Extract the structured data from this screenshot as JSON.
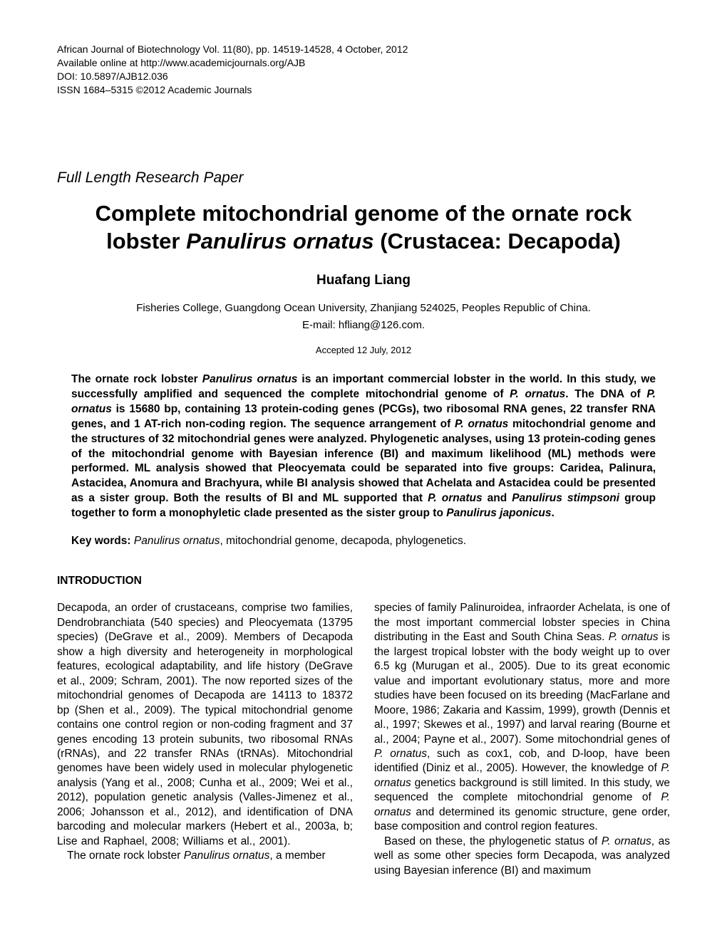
{
  "header": {
    "journal": "African Journal of Biotechnology Vol. 11(80), pp. 14519-14528, 4 October, 2012",
    "online": "Available online at http://www.academicjournals.org/AJB",
    "doi": "DOI: 10.5897/AJB12.036",
    "issn": "ISSN 1684–5315 ©2012 Academic Journals"
  },
  "paper_type": "Full Length Research Paper",
  "title_line1": "Complete mitochondrial genome of the ornate rock",
  "title_line2_prefix": "lobster ",
  "title_line2_species": "Panulirus ornatus",
  "title_line2_suffix": " (Crustacea: Decapoda)",
  "author": "Huafang Liang",
  "affiliation": "Fisheries College, Guangdong Ocean University, Zhanjiang 524025, Peoples Republic of China.",
  "email": "E-mail: hfliang@126.com.",
  "accepted": "Accepted 12 July, 2012",
  "abstract_p1": "The ornate rock lobster ",
  "abstract_sp1": "Panulirus ornatus",
  "abstract_p2": " is an important commercial lobster in the world. In this study, we successfully amplified and sequenced the complete mitochondrial genome of ",
  "abstract_sp2": "P. ornatus",
  "abstract_p3": ". The DNA of ",
  "abstract_sp3": "P. ornatus",
  "abstract_p4": " is 15680 bp, containing 13 protein-coding genes (PCGs), two ribosomal RNA genes, 22 transfer RNA genes, and 1 AT-rich non-coding region. The sequence arrangement of ",
  "abstract_sp4": "P. ornatus",
  "abstract_p5": " mitochondrial genome and the structures of 32 mitochondrial genes were analyzed. Phylogenetic analyses, using 13 protein-coding genes of the mitochondrial genome with Bayesian inference (BI) and maximum likelihood (ML) methods were performed. ML analysis showed that Pleocyemata could be separated into five groups: Caridea, Palinura, Astacidea, Anomura and Brachyura, while BI analysis showed that Achelata and Astacidea could be presented as a sister group. Both the results of BI and ML supported that ",
  "abstract_sp5": "P. ornatus",
  "abstract_p6": " and ",
  "abstract_sp6": "Panulirus stimpsoni",
  "abstract_p7": " group together to form a monophyletic clade presented as the sister group to ",
  "abstract_sp7": "Panulirus japonicus",
  "abstract_p8": ".",
  "keywords_label": "Key words:",
  "keywords_sp": "Panulirus ornatus",
  "keywords_text": ", mitochondrial genome, decapoda, phylogenetics.",
  "intro_heading": "INTRODUCTION",
  "col1_p1a": "Decapoda, an order of crustaceans, comprise two families, Dendrobranchiata (540 species) and Pleocyemata (13795 species) (DeGrave et al., 2009). Members of Decapoda show a high diversity and heterogeneity in morphological features, ecological adaptability, and life history (DeGrave et al., 2009; Schram, 2001). The now reported sizes of the mitochondrial genomes of Decapoda are 14113 to 18372 bp (Shen et al., 2009). The typical mitochondrial genome contains one control region or non-coding fragment and 37 genes encoding 13 protein subunits, two ribosomal RNAs (rRNAs), and 22 transfer RNAs (tRNAs). Mitochondrial genomes have been widely used in molecular phylogenetic analysis (Yang et al., 2008; Cunha et al., 2009; Wei et al., 2012), population genetic analysis (Valles-Jimenez et al., 2006; Johansson et al., 2012), and identification of DNA barcoding and molecular markers (Hebert et al., 2003a, b; Lise and Raphael, 2008; Williams et al., 2001).",
  "col1_p2_prefix": "The ornate rock lobster ",
  "col1_p2_sp": "Panulirus ornatus",
  "col1_p2_suffix": ", a member",
  "col2_p1a": "species of family Palinuroidea, infraorder Achelata, is one of the most important commercial lobster species in China distributing in the East and South China Seas. ",
  "col2_sp1": "P. ornatus",
  "col2_p1b": " is the largest tropical lobster with the body weight up to over 6.5 kg (Murugan et al., 2005). Due to its great economic value and important evolutionary status, more and more studies have been focused on its breeding (MacFarlane and Moore, 1986; Zakaria and Kassim, 1999), growth (Dennis et al., 1997; Skewes et al., 1997) and larval rearing (Bourne et al., 2004; Payne et al., 2007). Some mitochondrial genes of ",
  "col2_sp2": "P. ornatus",
  "col2_p1c": ", such as cox1, cob, and D-loop, have been identified (Diniz et al., 2005). However, the knowledge of ",
  "col2_sp3": "P. ornatus",
  "col2_p1d": " genetics background is still limited. In this study, we sequenced the complete mitochondrial genome of ",
  "col2_sp4": "P. ornatus",
  "col2_p1e": " and determined its genomic structure, gene order, base composition and control region features.",
  "col2_p2_prefix": "Based on these, the phylogenetic status of ",
  "col2_p2_sp": "P. ornatus",
  "col2_p2_suffix": ", as well as some other species form Decapoda, was analyzed using Bayesian inference (BI) and maximum"
}
